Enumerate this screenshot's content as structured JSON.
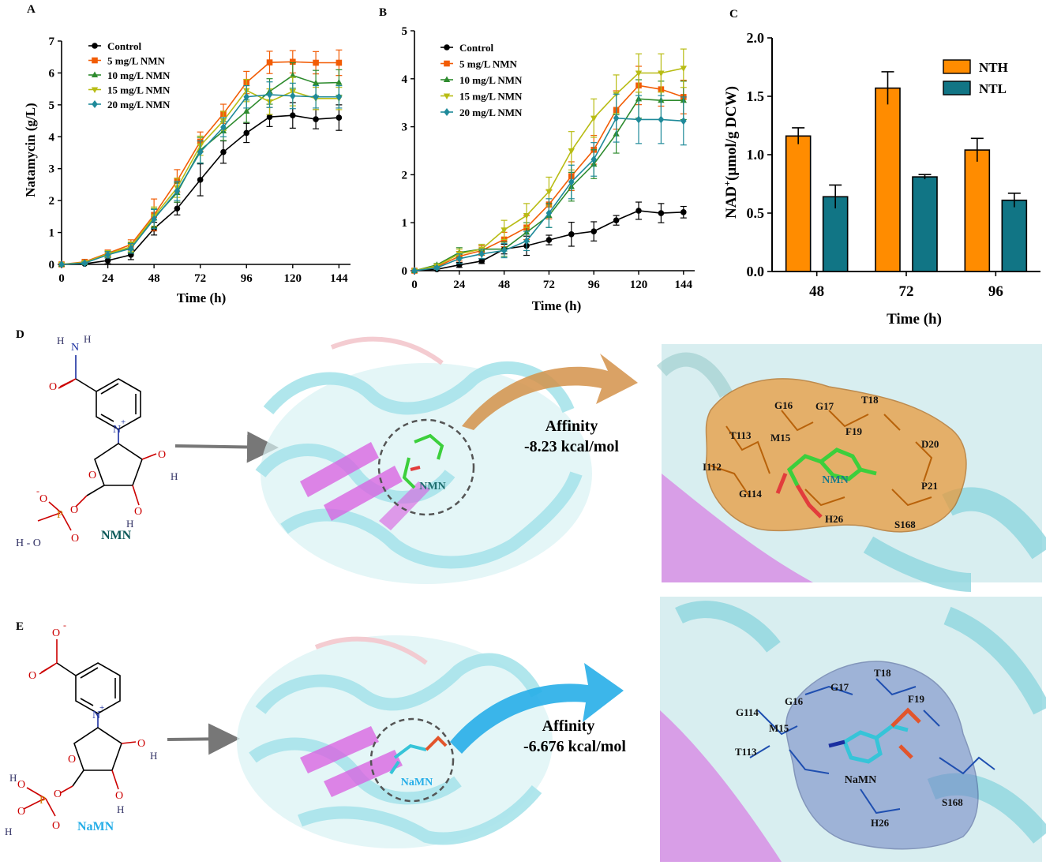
{
  "panel_letters": {
    "a": "A",
    "b": "B",
    "c": "C",
    "d": "D",
    "e": "E"
  },
  "colors": {
    "control": "#000000",
    "nmn5": "#f25c05",
    "nmn10": "#2e8b2e",
    "nmn15": "#b8bc14",
    "nmn20": "#1f8a9a",
    "nth": "#ff8c00",
    "ntl": "#117585",
    "protein_cyan": "#a7e3ea",
    "protein_pink": "#f3c6cc",
    "sheet_magenta": "#d95ce0",
    "pocket_orange": "#e89a3c",
    "pocket_blue": "#6f84c4",
    "arrow_orange": "#d4924a",
    "arrow_blue": "#27aee8",
    "ligand_green": "#3ccf3c",
    "ligand_cyan": "#36c4d8"
  },
  "chart_data": [
    {
      "type": "line",
      "panel": "A",
      "xlabel": "Time (h)",
      "ylabel": "Natamycin (g/L)",
      "xlim": [
        0,
        150
      ],
      "ylim": [
        0,
        7
      ],
      "xticks": [
        0,
        24,
        48,
        72,
        96,
        120,
        144
      ],
      "yticks": [
        0,
        1,
        2,
        3,
        4,
        5,
        6,
        7
      ],
      "legend_position": "top-left",
      "x": [
        0,
        12,
        24,
        36,
        48,
        60,
        72,
        84,
        96,
        108,
        120,
        132,
        144
      ],
      "series": [
        {
          "name": "Control",
          "color": "#000000",
          "marker": "circle",
          "values": [
            0,
            0.02,
            0.12,
            0.3,
            1.12,
            1.75,
            2.65,
            3.52,
            4.12,
            4.62,
            4.67,
            4.55,
            4.6
          ],
          "errors": [
            0,
            0.02,
            0.1,
            0.15,
            0.2,
            0.2,
            0.5,
            0.35,
            0.3,
            0.3,
            0.4,
            0.3,
            0.4
          ]
        },
        {
          "name": "5 mg/L NMN",
          "color": "#f25c05",
          "marker": "square",
          "values": [
            0,
            0.08,
            0.35,
            0.62,
            1.55,
            2.62,
            3.85,
            4.72,
            5.7,
            6.33,
            6.35,
            6.32,
            6.32
          ],
          "errors": [
            0,
            0.03,
            0.1,
            0.15,
            0.5,
            0.35,
            0.3,
            0.3,
            0.35,
            0.35,
            0.35,
            0.35,
            0.4
          ]
        },
        {
          "name": "10 mg/L NMN",
          "color": "#2e8b2e",
          "marker": "triangle",
          "values": [
            0,
            0.05,
            0.3,
            0.52,
            1.45,
            2.25,
            3.58,
            4.18,
            4.8,
            5.42,
            5.92,
            5.68,
            5.7
          ],
          "errors": [
            0,
            0.03,
            0.1,
            0.15,
            0.3,
            0.3,
            0.4,
            0.3,
            0.35,
            0.4,
            0.4,
            0.4,
            0.4
          ]
        },
        {
          "name": "15 mg/L NMN",
          "color": "#b8bc14",
          "marker": "triangle-down",
          "values": [
            0,
            0.06,
            0.33,
            0.55,
            1.5,
            2.4,
            3.72,
            4.5,
            5.45,
            5.1,
            5.42,
            5.2,
            5.2
          ],
          "errors": [
            0,
            0.03,
            0.1,
            0.15,
            0.3,
            0.3,
            0.3,
            0.3,
            0.35,
            0.4,
            0.45,
            0.35,
            0.35
          ]
        },
        {
          "name": "20 mg/L NMN",
          "color": "#1f8a9a",
          "marker": "diamond",
          "values": [
            0,
            0.04,
            0.3,
            0.5,
            1.42,
            2.3,
            3.52,
            4.3,
            5.25,
            5.32,
            5.28,
            5.25,
            5.25
          ],
          "errors": [
            0,
            0.03,
            0.1,
            0.15,
            0.3,
            0.3,
            0.35,
            0.3,
            0.35,
            0.4,
            0.4,
            0.35,
            0.35
          ]
        }
      ]
    },
    {
      "type": "line",
      "panel": "B",
      "xlabel": "Time (h)",
      "ylabel": "",
      "xlim": [
        0,
        150
      ],
      "ylim": [
        0,
        5
      ],
      "xticks": [
        0,
        24,
        48,
        72,
        96,
        120,
        144
      ],
      "yticks": [
        0,
        1,
        2,
        3,
        4,
        5
      ],
      "legend_position": "top-left",
      "x": [
        0,
        12,
        24,
        36,
        48,
        60,
        72,
        84,
        96,
        108,
        120,
        132,
        144
      ],
      "series": [
        {
          "name": "Control",
          "color": "#000000",
          "marker": "circle",
          "values": [
            0,
            0.03,
            0.12,
            0.2,
            0.45,
            0.52,
            0.64,
            0.76,
            0.82,
            1.05,
            1.25,
            1.2,
            1.22
          ],
          "errors": [
            0,
            0.02,
            0.05,
            0.05,
            0.1,
            0.2,
            0.1,
            0.25,
            0.2,
            0.1,
            0.18,
            0.2,
            0.12
          ]
        },
        {
          "name": "5 mg/L NMN",
          "color": "#f25c05",
          "marker": "square",
          "values": [
            0,
            0.08,
            0.3,
            0.42,
            0.65,
            0.9,
            1.38,
            1.97,
            2.52,
            3.35,
            3.86,
            3.78,
            3.62
          ],
          "errors": [
            0,
            0.03,
            0.1,
            0.1,
            0.15,
            0.25,
            0.3,
            0.3,
            0.3,
            0.4,
            0.4,
            0.35,
            0.35
          ]
        },
        {
          "name": "10 mg/L NMN",
          "color": "#2e8b2e",
          "marker": "triangle",
          "values": [
            0,
            0.12,
            0.38,
            0.45,
            0.45,
            0.8,
            1.15,
            1.75,
            2.22,
            2.85,
            3.58,
            3.55,
            3.55
          ],
          "errors": [
            0,
            0.03,
            0.1,
            0.1,
            0.15,
            0.2,
            0.25,
            0.3,
            0.3,
            0.4,
            0.4,
            0.4,
            0.4
          ]
        },
        {
          "name": "15 mg/L NMN",
          "color": "#b8bc14",
          "marker": "triangle-down",
          "values": [
            0,
            0.1,
            0.35,
            0.45,
            0.85,
            1.15,
            1.65,
            2.5,
            3.18,
            3.68,
            4.12,
            4.12,
            4.22
          ],
          "errors": [
            0,
            0.03,
            0.1,
            0.1,
            0.2,
            0.25,
            0.3,
            0.4,
            0.4,
            0.4,
            0.4,
            0.4,
            0.4
          ]
        },
        {
          "name": "20 mg/L NMN",
          "color": "#1f8a9a",
          "marker": "diamond",
          "values": [
            0,
            0.06,
            0.25,
            0.35,
            0.42,
            0.62,
            1.2,
            1.85,
            2.32,
            3.18,
            3.15,
            3.15,
            3.12
          ],
          "errors": [
            0,
            0.03,
            0.1,
            0.1,
            0.15,
            0.2,
            0.3,
            0.35,
            0.35,
            0.5,
            0.5,
            0.5,
            0.5
          ]
        }
      ]
    },
    {
      "type": "bar",
      "panel": "C",
      "xlabel": "Time (h)",
      "ylabel_main": "NAD",
      "ylabel_sup": "+",
      "ylabel_rest": "(μmol/g DCW)",
      "ylim": [
        0,
        2.0
      ],
      "yticks": [
        "0.0",
        "0.5",
        "1.0",
        "1.5",
        "2.0"
      ],
      "categories": [
        "48",
        "72",
        "96"
      ],
      "legend_position": "top-right",
      "series": [
        {
          "name": "NTH",
          "color": "#ff8c00",
          "values": [
            1.16,
            1.57,
            1.04
          ],
          "errors": [
            0.07,
            0.14,
            0.1
          ]
        },
        {
          "name": "NTL",
          "color": "#117585",
          "values": [
            0.64,
            0.81,
            0.61
          ],
          "errors": [
            0.1,
            0.02,
            0.06
          ]
        }
      ]
    }
  ],
  "panel_d": {
    "molecule": {
      "label": "NMN",
      "n_label": "N",
      "h_label": "H",
      "o_label": "O",
      "ho_label": "H - O",
      "oh_label": "O",
      "o_minus": "O",
      "p_label": "P",
      "plus": "+",
      "minus": "-"
    },
    "circle_label": "NMN",
    "affinity_title": "Affinity",
    "affinity_value": "-8.23 kcal/mol",
    "zoom_ligand_label": "NMN",
    "residues": [
      "G16",
      "G17",
      "T18",
      "T113",
      "M15",
      "F19",
      "D20",
      "I112",
      "P21",
      "G114",
      "H26",
      "S168"
    ]
  },
  "panel_e": {
    "molecule": {
      "label": "NaMN",
      "n_label": "N",
      "h_label": "H",
      "o_label": "O",
      "p_label": "P",
      "plus": "+",
      "minus": "-"
    },
    "circle_label": "NaMN",
    "affinity_title": "Affinity",
    "affinity_value": "-6.676 kcal/mol",
    "zoom_ligand_label": "NaMN",
    "residues": [
      "G17",
      "T18",
      "G16",
      "F19",
      "G114",
      "M15",
      "T113",
      "S168",
      "H26"
    ]
  }
}
